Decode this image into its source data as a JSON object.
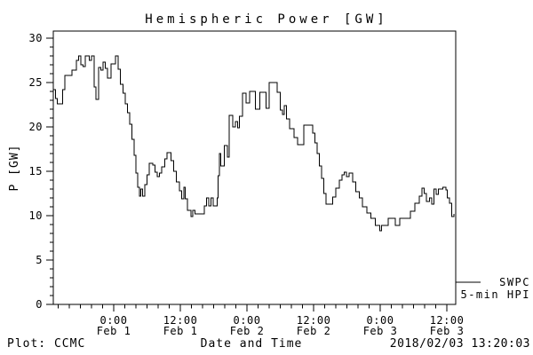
{
  "footer": {
    "left": "Plot: CCMC",
    "right": "2018/02/03 13:20:03"
  },
  "chart_data": {
    "type": "line",
    "title": "Hemispheric Power [GW]",
    "xlabel": "Date and Time",
    "ylabel": "P [GW]",
    "line_color": "#000000",
    "background_color": "#ffffff",
    "grid": false,
    "ylim": [
      0,
      30
    ],
    "y_major_ticks": [
      0,
      5,
      10,
      15,
      20,
      25,
      30
    ],
    "y_minor_step": 1,
    "xlim_hours_from_feb1": [
      -10.9,
      61.6
    ],
    "x_minor_step_hours": 2,
    "x_major_ticks": [
      {
        "hour": 0,
        "time": "0:00",
        "date": "Feb 1"
      },
      {
        "hour": 12,
        "time": "12:00",
        "date": "Feb 1"
      },
      {
        "hour": 24,
        "time": "0:00",
        "date": "Feb 2"
      },
      {
        "hour": 36,
        "time": "12:00",
        "date": "Feb 2"
      },
      {
        "hour": 48,
        "time": "0:00",
        "date": "Feb 3"
      },
      {
        "hour": 60,
        "time": "12:00",
        "date": "Feb 3"
      }
    ],
    "legend": {
      "position": "outside-right-bottom",
      "entries": [
        "SWPC",
        "5-min HPI"
      ]
    },
    "series": [
      {
        "name": "SWPC 5-min HPI",
        "step": true,
        "units": "GW",
        "x_units": "hours since 2018-02-01 00:00",
        "points": [
          [
            -10.9,
            24.2
          ],
          [
            -10.5,
            23.2
          ],
          [
            -10.2,
            22.6
          ],
          [
            -9.2,
            24.2
          ],
          [
            -8.8,
            25.8
          ],
          [
            -7.5,
            26.4
          ],
          [
            -6.7,
            27.5
          ],
          [
            -6.3,
            28
          ],
          [
            -5.9,
            27
          ],
          [
            -5.5,
            26.8
          ],
          [
            -5.1,
            28
          ],
          [
            -4.4,
            27.5
          ],
          [
            -4,
            28
          ],
          [
            -3.5,
            24.5
          ],
          [
            -3.2,
            23.1
          ],
          [
            -2.7,
            26.7
          ],
          [
            -2.3,
            26.4
          ],
          [
            -1.9,
            27.3
          ],
          [
            -1.5,
            26.6
          ],
          [
            -1.1,
            25.5
          ],
          [
            -0.5,
            27.1
          ],
          [
            0.3,
            28
          ],
          [
            0.8,
            26.5
          ],
          [
            1.2,
            24.8
          ],
          [
            1.7,
            23.8
          ],
          [
            2.1,
            22.6
          ],
          [
            2.5,
            21.6
          ],
          [
            2.9,
            20.3
          ],
          [
            3.3,
            18.6
          ],
          [
            3.7,
            16.8
          ],
          [
            4,
            14.8
          ],
          [
            4.3,
            13.2
          ],
          [
            4.6,
            12.2
          ],
          [
            4.9,
            13
          ],
          [
            5.2,
            12.2
          ],
          [
            5.6,
            13.5
          ],
          [
            6,
            14.6
          ],
          [
            6.4,
            15.9
          ],
          [
            7,
            15.7
          ],
          [
            7.4,
            14.9
          ],
          [
            7.8,
            14.4
          ],
          [
            8.2,
            14.8
          ],
          [
            8.6,
            15.5
          ],
          [
            9.2,
            16.4
          ],
          [
            9.6,
            17.1
          ],
          [
            10.3,
            16.2
          ],
          [
            10.8,
            15
          ],
          [
            11.3,
            13.8
          ],
          [
            11.8,
            12.8
          ],
          [
            12.2,
            11.9
          ],
          [
            12.6,
            13.2
          ],
          [
            12.9,
            11.9
          ],
          [
            13.3,
            10.6
          ],
          [
            13.9,
            9.9
          ],
          [
            14.2,
            10.6
          ],
          [
            14.6,
            10.2
          ],
          [
            16.3,
            11.1
          ],
          [
            16.7,
            12
          ],
          [
            17.1,
            11.1
          ],
          [
            17.5,
            12
          ],
          [
            17.9,
            11.1
          ],
          [
            18.6,
            12
          ],
          [
            18.8,
            14.5
          ],
          [
            19,
            17
          ],
          [
            19.3,
            15.6
          ],
          [
            19.9,
            17.9
          ],
          [
            20.5,
            16.6
          ],
          [
            20.8,
            21.3
          ],
          [
            21.4,
            20
          ],
          [
            21.9,
            20.6
          ],
          [
            22.3,
            19.9
          ],
          [
            22.6,
            21.2
          ],
          [
            23.2,
            23.8
          ],
          [
            23.8,
            22.7
          ],
          [
            24.5,
            24
          ],
          [
            25.5,
            22
          ],
          [
            26.3,
            23.9
          ],
          [
            27.4,
            22.1
          ],
          [
            28,
            25
          ],
          [
            29.4,
            23.9
          ],
          [
            30,
            21.9
          ],
          [
            30.4,
            21.4
          ],
          [
            30.7,
            22.4
          ],
          [
            31.1,
            20.9
          ],
          [
            31.7,
            19.8
          ],
          [
            32.5,
            18.8
          ],
          [
            33.1,
            18
          ],
          [
            34.2,
            20.2
          ],
          [
            35.8,
            19.3
          ],
          [
            36.2,
            18.2
          ],
          [
            36.6,
            17
          ],
          [
            37,
            15.6
          ],
          [
            37.4,
            14.2
          ],
          [
            37.8,
            12.5
          ],
          [
            38.2,
            11.3
          ],
          [
            39.4,
            12.1
          ],
          [
            40,
            13.1
          ],
          [
            40.6,
            14
          ],
          [
            41.1,
            14.6
          ],
          [
            41.5,
            14.9
          ],
          [
            41.9,
            14.4
          ],
          [
            42.4,
            14.8
          ],
          [
            43,
            13.8
          ],
          [
            43.6,
            12.7
          ],
          [
            44.2,
            12
          ],
          [
            44.8,
            11
          ],
          [
            45.6,
            10.3
          ],
          [
            46.3,
            9.7
          ],
          [
            47.1,
            8.9
          ],
          [
            47.9,
            8.3
          ],
          [
            48.2,
            8.9
          ],
          [
            49.4,
            9.7
          ],
          [
            50.7,
            8.9
          ],
          [
            51.5,
            9.7
          ],
          [
            53.4,
            10.5
          ],
          [
            54.2,
            11.4
          ],
          [
            55,
            12.2
          ],
          [
            55.5,
            13.1
          ],
          [
            55.9,
            12.5
          ],
          [
            56.3,
            11.6
          ],
          [
            56.9,
            12
          ],
          [
            57.3,
            11.3
          ],
          [
            57.7,
            13
          ],
          [
            58.1,
            12.4
          ],
          [
            58.5,
            13
          ],
          [
            59.3,
            13.2
          ],
          [
            59.8,
            12.9
          ],
          [
            60.1,
            12
          ],
          [
            60.5,
            11.4
          ],
          [
            60.9,
            9.9
          ],
          [
            61.3,
            10.2
          ]
        ]
      }
    ]
  }
}
